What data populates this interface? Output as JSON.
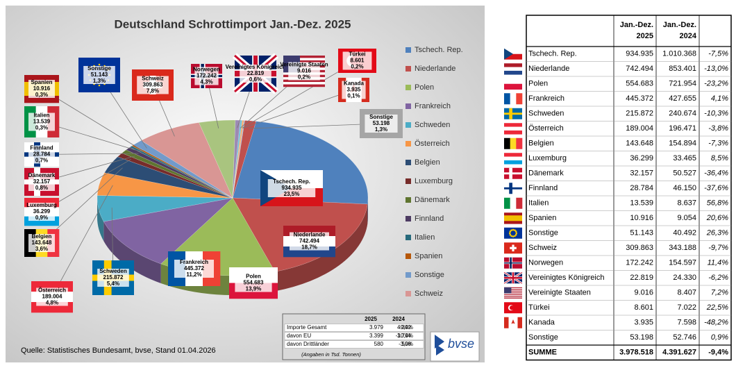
{
  "chart_data": {
    "type": "pie",
    "title": "Deutschland Schrottimport Jan.-Dez. 2025",
    "categories": [
      "Tschech. Rep.",
      "Niederlande",
      "Polen",
      "Frankreich",
      "Schweden",
      "Österreich",
      "Belgien",
      "Luxemburg",
      "Dänemark",
      "Finnland",
      "Italien",
      "Spanien",
      "Sonstige",
      "Schweiz",
      "Norwegen",
      "Vereinigtes Königreich",
      "Vereinigte Staaten",
      "Türkei",
      "Kanada",
      "Sonstige"
    ],
    "values": [
      934935,
      742494,
      554683,
      445372,
      215872,
      189004,
      143648,
      36299,
      32157,
      28784,
      13539,
      10916,
      51143,
      309863,
      172242,
      22819,
      9016,
      8601,
      3935,
      53198
    ],
    "value_labels": [
      "934.935",
      "742.494",
      "554.683",
      "445.372",
      "215.872",
      "189.004",
      "143.648",
      "36.299",
      "32.157",
      "28.784",
      "13.539",
      "10.916",
      "51.143",
      "309.863",
      "172.242",
      "22.819",
      "9.016",
      "8.601",
      "3.935",
      "53.198"
    ],
    "percent_labels": [
      "23,5%",
      "18,7%",
      "13,9%",
      "11,2%",
      "5,4%",
      "4,8%",
      "3,6%",
      "0,9%",
      "0,8%",
      "0,7%",
      "0,3%",
      "0,3%",
      "1,3%",
      "7,8%",
      "4,3%",
      "0,6%",
      "0,2%",
      "0,2%",
      "0,1%",
      "1,3%"
    ],
    "colors": [
      "#4f81bd",
      "#c0504d",
      "#9bbb59",
      "#8064a2",
      "#4bacc6",
      "#f79646",
      "#2c4d75",
      "#772c2a",
      "#5f7530",
      "#4d3b62",
      "#276a7c",
      "#b65708",
      "#729aca",
      "#d99694",
      "#a9c47f",
      "#9c8ab4",
      "#6fc0d6",
      "#f9ab6b",
      "#8eb0dc",
      "#c0504d"
    ],
    "legend": "right",
    "source": "Quelle: Statistisches Bundesamt, bvse, Stand 01.04.2026",
    "logo": "bvse"
  },
  "summary": {
    "header": [
      "2025",
      "2024"
    ],
    "rows": [
      [
        "Importe Gesamt",
        "3.979",
        "4.392",
        "-9,4%"
      ],
      [
        "davon EU",
        "3.399",
        "3.794",
        "-10,4%"
      ],
      [
        "davon Drittländer",
        "580",
        "598",
        "-3,0%"
      ]
    ],
    "note": "(Angaben in Tsd. Tonnen)"
  },
  "table": {
    "header": [
      [
        "Jan.-Dez.",
        "2025"
      ],
      [
        "Jan.-Dez.",
        "2024"
      ]
    ],
    "rows": [
      [
        "Tschech. Rep.",
        "934.935",
        "1.010.368",
        "-7,5%"
      ],
      [
        "Niederlande",
        "742.494",
        "853.401",
        "-13,0%"
      ],
      [
        "Polen",
        "554.683",
        "721.954",
        "-23,2%"
      ],
      [
        "Frankreich",
        "445.372",
        "427.655",
        "4,1%"
      ],
      [
        "Schweden",
        "215.872",
        "240.674",
        "-10,3%"
      ],
      [
        "Österreich",
        "189.004",
        "196.471",
        "-3,8%"
      ],
      [
        "Belgien",
        "143.648",
        "154.894",
        "-7,3%"
      ],
      [
        "Luxemburg",
        "36.299",
        "33.465",
        "8,5%"
      ],
      [
        "Dänemark",
        "32.157",
        "50.527",
        "-36,4%"
      ],
      [
        "Finnland",
        "28.784",
        "46.150",
        "-37,6%"
      ],
      [
        "Italien",
        "13.539",
        "8.637",
        "56,8%"
      ],
      [
        "Spanien",
        "10.916",
        "9.054",
        "20,6%"
      ],
      [
        "Sonstige",
        "51.143",
        "40.492",
        "26,3%"
      ],
      [
        "Schweiz",
        "309.863",
        "343.188",
        "-9,7%"
      ],
      [
        "Norwegen",
        "172.242",
        "154.597",
        "11,4%"
      ],
      [
        "Vereinigtes Königreich",
        "22.819",
        "24.330",
        "-6,2%"
      ],
      [
        "Vereinigte Staaten",
        "9.016",
        "8.407",
        "7,2%"
      ],
      [
        "Türkei",
        "8.601",
        "7.022",
        "22,5%"
      ],
      [
        "Kanada",
        "3.935",
        "7.598",
        "-48,2%"
      ],
      [
        "Sonstige",
        "53.198",
        "52.746",
        "0,9%"
      ],
      [
        "SUMME",
        "3.978.518",
        "4.391.627",
        "-9,4%"
      ]
    ]
  }
}
